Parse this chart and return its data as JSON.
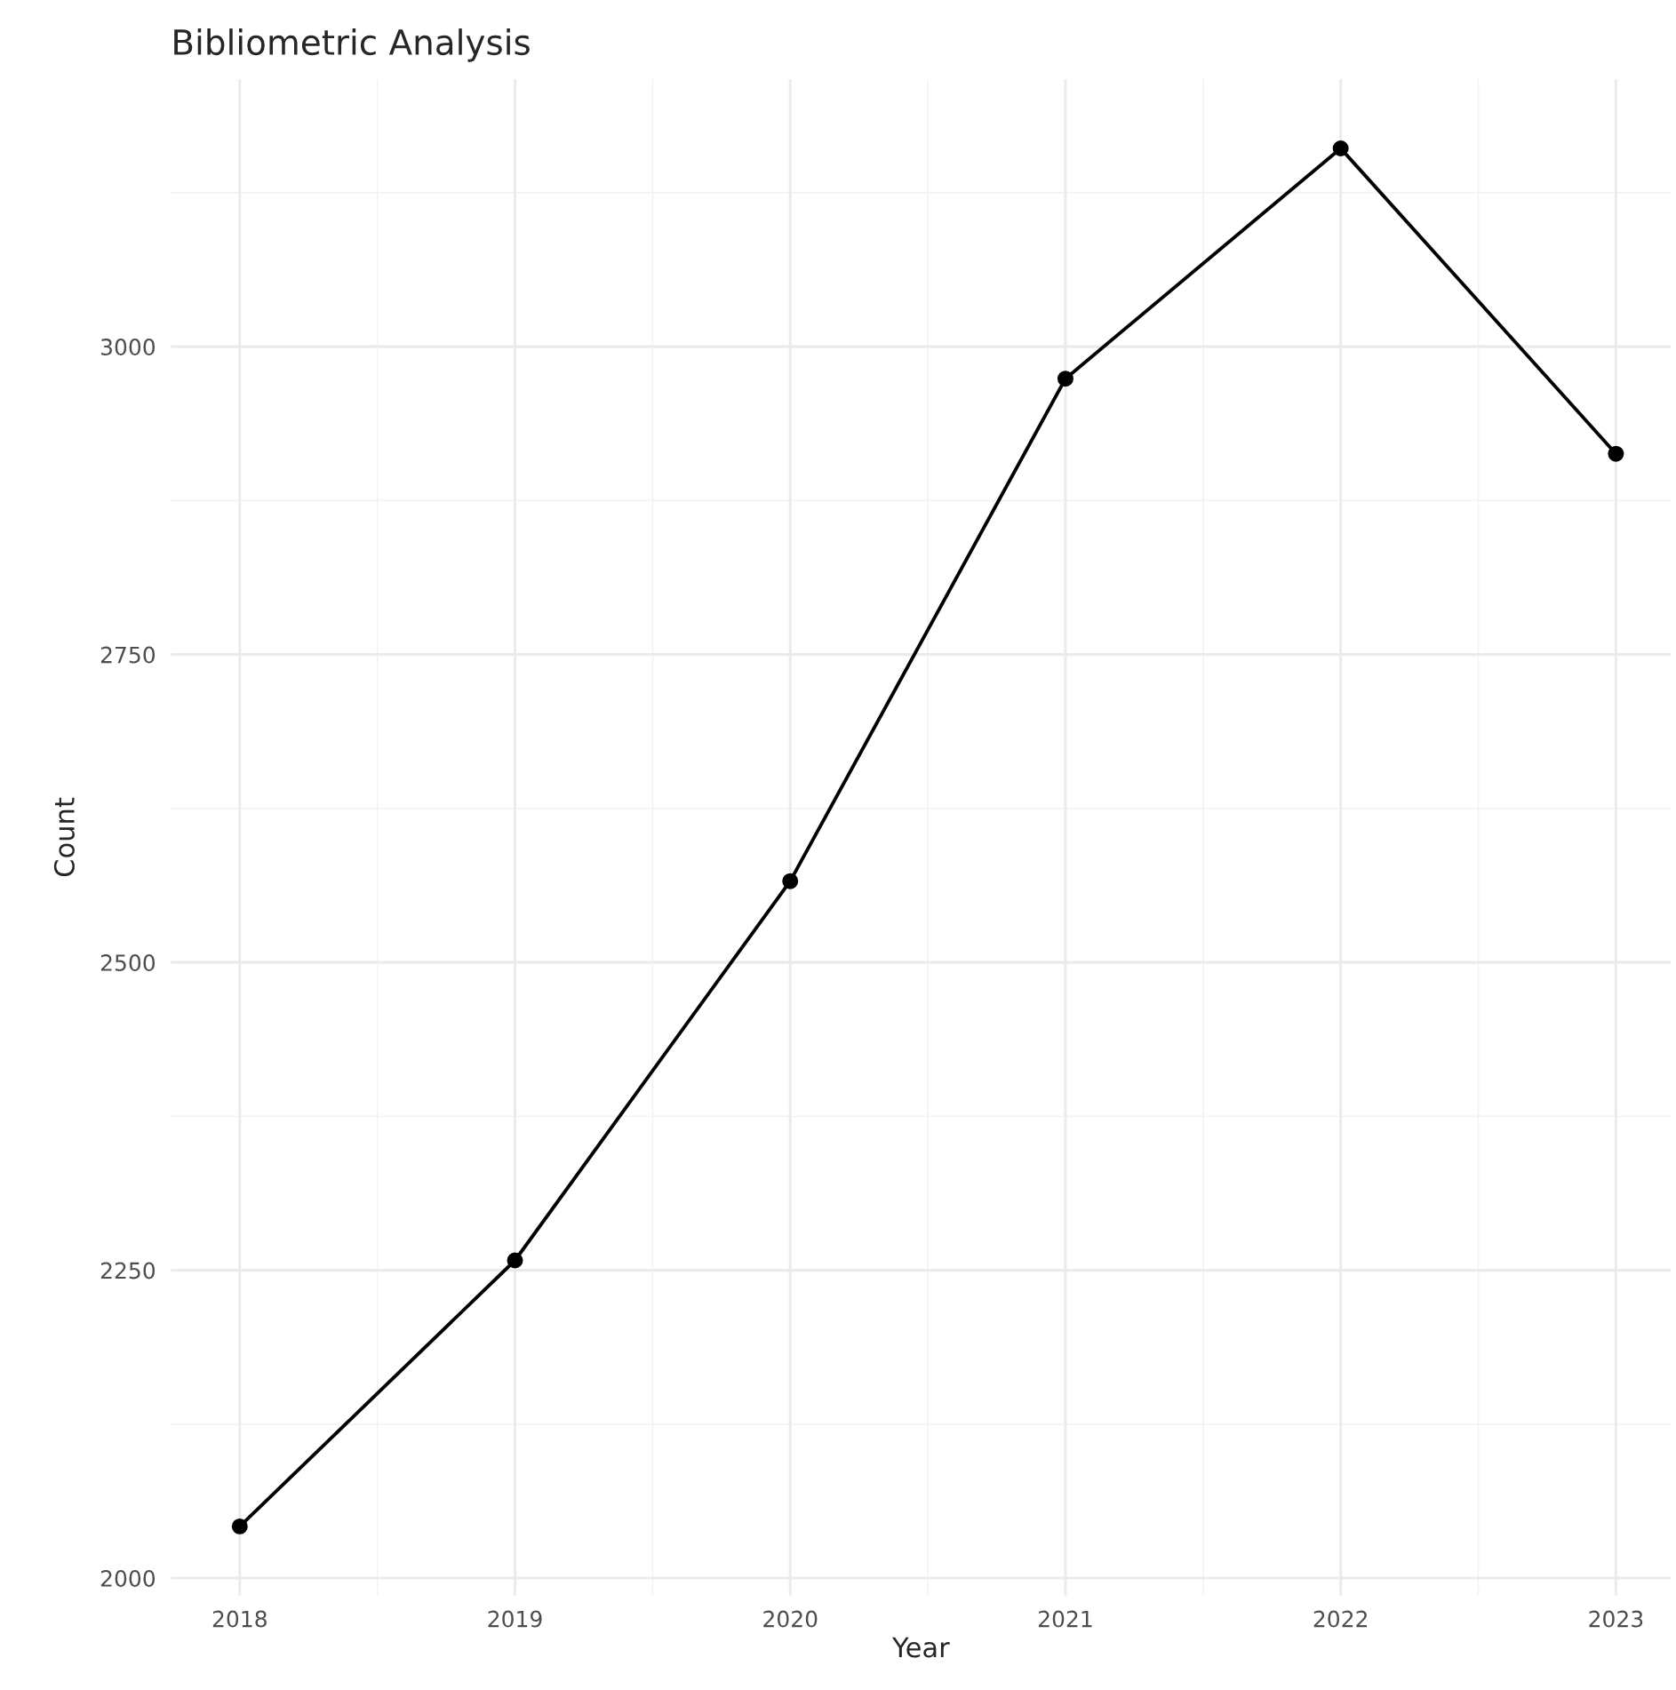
{
  "chart_data": {
    "type": "line",
    "title": "Bibliometric Analysis",
    "xlabel": "Year",
    "ylabel": "Count",
    "x": [
      2018,
      2019,
      2020,
      2021,
      2022,
      2023
    ],
    "series": [
      {
        "color": "#000000",
        "values": [
          2042,
          2258,
          2566,
          2974,
          3161,
          2913
        ]
      }
    ],
    "xlim": [
      2017.75,
      2023.2
    ],
    "xticks": [
      2018,
      2019,
      2020,
      2021,
      2022,
      2023
    ],
    "ylim": [
      1986,
      3217
    ],
    "yticks": [
      2000,
      2250,
      2500,
      2750,
      3000
    ],
    "grid": true,
    "marker": "circle",
    "line_style": "solid",
    "legend": false
  }
}
